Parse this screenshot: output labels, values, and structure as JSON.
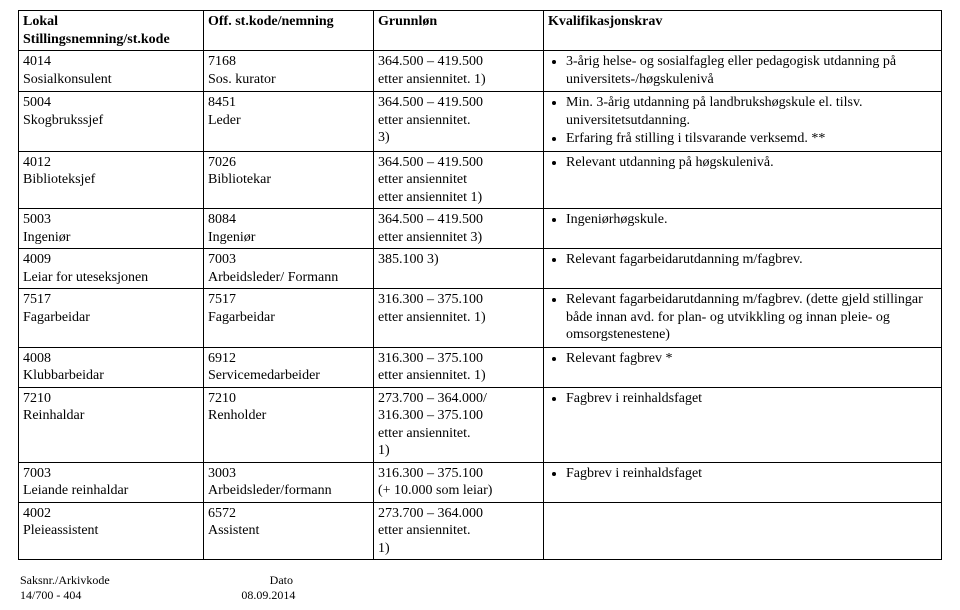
{
  "font": {
    "family": "Times New Roman",
    "body_size_pt": 11
  },
  "colors": {
    "text": "#000000",
    "border": "#000000",
    "bg": "#ffffff"
  },
  "headers": {
    "col1": "Lokal Stillingsnemning/st.kode",
    "col2": "Off. st.kode/nemning",
    "col3": "Grunnløn",
    "col4": "Kvalifikasjonskrav"
  },
  "rows": [
    {
      "local": [
        "4014",
        "Sosialkonsulent"
      ],
      "off": [
        "7168",
        "Sos. kurator"
      ],
      "grunn": [
        "364.500 – 419.500",
        "etter ansiennitet.       1)"
      ],
      "kval": [
        "3-årig helse- og sosialfagleg eller pedagogisk utdanning på universitets-/høgskulenivå"
      ]
    },
    {
      "local": [
        "5004",
        "Skogbrukssjef"
      ],
      "off": [
        "8451",
        "Leder"
      ],
      "grunn": [
        "364.500 – 419.500",
        "etter ansiennitet.",
        "3)"
      ],
      "kval": [
        "Min. 3-årig utdanning på landbrukshøgskule el. tilsv. universitetsutdanning.",
        "Erfaring frå stilling i tilsvarande verksemd. **"
      ]
    },
    {
      "local": [
        "4012",
        "Biblioteksjef"
      ],
      "off": [
        "7026",
        "Bibliotekar"
      ],
      "grunn": [
        "364.500 – 419.500",
        "etter ansiennitet",
        "etter ansiennitet       1)"
      ],
      "kval": [
        "Relevant utdanning på høgskulenivå."
      ]
    },
    {
      "local": [
        " 5003",
        "Ingeniør"
      ],
      "off": [
        "8084",
        "Ingeniør"
      ],
      "grunn": [
        "364.500 – 419.500",
        "etter ansiennitet       3)"
      ],
      "kval": [
        "Ingeniørhøgskule."
      ]
    },
    {
      "local": [
        "4009",
        "Leiar for uteseksjonen"
      ],
      "off": [
        "7003",
        "Arbeidsleder/ Formann"
      ],
      "grunn": [
        "385.100  3)"
      ],
      "kval": [
        "Relevant fagarbeidarutdanning m/fagbrev."
      ]
    },
    {
      "local": [
        "7517",
        "Fagarbeidar"
      ],
      "off": [
        "7517",
        "Fagarbeidar"
      ],
      "grunn": [
        "316.300 – 375.100",
        "etter ansiennitet.       1)"
      ],
      "kval": [
        "Relevant fagarbeidarutdanning m/fagbrev. (dette gjeld stillingar både innan avd. for plan- og utvikkling og innan pleie- og omsorgstenestene)"
      ]
    },
    {
      "local": [
        "4008",
        "Klubbarbeidar"
      ],
      "off": [
        "6912",
        "Servicemedarbeider"
      ],
      "grunn": [
        "316.300 – 375.100",
        "etter ansiennitet.       1)"
      ],
      "kval": [
        "Relevant fagbrev *"
      ]
    },
    {
      "local": [
        "7210",
        "Reinhaldar"
      ],
      "off": [
        "7210",
        "Renholder"
      ],
      "grunn": [
        "273.700 – 364.000/",
        "316.300 – 375.100",
        "etter ansiennitet.",
        "1)"
      ],
      "kval": [
        "Fagbrev i reinhaldsfaget"
      ]
    },
    {
      "local": [
        "7003",
        "Leiande reinhaldar"
      ],
      "off": [
        "3003",
        "Arbeidsleder/formann"
      ],
      "grunn": [
        "316.300 – 375.100",
        " (+ 10.000 som leiar)"
      ],
      "kval": [
        "Fagbrev i reinhaldsfaget"
      ]
    },
    {
      "local": [
        "4002",
        "Pleieassistent"
      ],
      "off": [
        "6572",
        "Assistent"
      ],
      "grunn": [
        "273.700 – 364.000",
        "etter ansiennitet.",
        "1)"
      ],
      "kval": []
    }
  ],
  "footer": {
    "left_label": "Saksnr./Arkivkode",
    "left_value": "14/700 - 404",
    "right_label": "Dato",
    "right_value": "08.09.2014"
  }
}
